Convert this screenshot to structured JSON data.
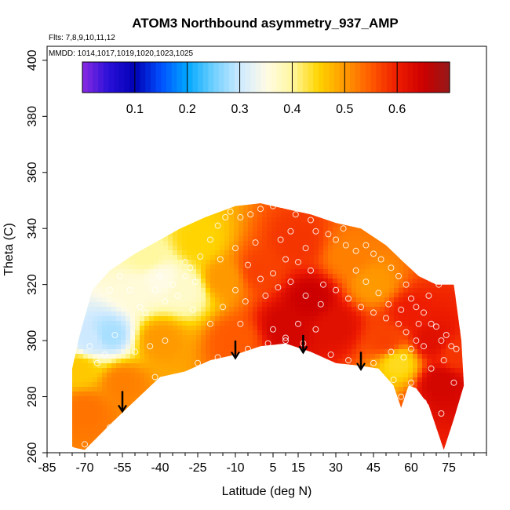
{
  "chart_data": {
    "type": "heatmap",
    "title": "ATOM3 Northbound asymmetry_937_AMP",
    "flights_note": "Flts: 7,8,9,10,11,12",
    "dates_note": "MMDD: 1014,1017,1019,1020,1023,1025",
    "xlabel": "Latitude (deg N)",
    "ylabel": "Theta (C)",
    "xlim": [
      -85,
      90
    ],
    "ylim": [
      260,
      405
    ],
    "x_ticks": [
      -85,
      -70,
      -55,
      -40,
      -25,
      -10,
      5,
      15,
      30,
      45,
      60,
      75
    ],
    "y_ticks": [
      260,
      280,
      300,
      320,
      340,
      360,
      380,
      400
    ],
    "colorbar": {
      "min": 0.0,
      "max": 0.7,
      "ticks": [
        0.1,
        0.2,
        0.3,
        0.4,
        0.5,
        0.6
      ],
      "stops": [
        {
          "v": 0.0,
          "c": "#8a2be2"
        },
        {
          "v": 0.05,
          "c": "#2a10d8"
        },
        {
          "v": 0.1,
          "c": "#0000b4"
        },
        {
          "v": 0.15,
          "c": "#0050ff"
        },
        {
          "v": 0.2,
          "c": "#00a8ff"
        },
        {
          "v": 0.25,
          "c": "#70d0ff"
        },
        {
          "v": 0.3,
          "c": "#cde9ff"
        },
        {
          "v": 0.35,
          "c": "#fffbe6"
        },
        {
          "v": 0.4,
          "c": "#fff8a0"
        },
        {
          "v": 0.45,
          "c": "#ffd400"
        },
        {
          "v": 0.5,
          "c": "#ff9900"
        },
        {
          "v": 0.55,
          "c": "#ff5a00"
        },
        {
          "v": 0.6,
          "c": "#ee1c00"
        },
        {
          "v": 0.65,
          "c": "#cc0000"
        },
        {
          "v": 0.7,
          "c": "#961818"
        }
      ]
    },
    "upper_boundary": [
      [
        -75,
        290
      ],
      [
        -72,
        302
      ],
      [
        -67,
        318
      ],
      [
        -60,
        325
      ],
      [
        -50,
        331
      ],
      [
        -42,
        335
      ],
      [
        -32,
        340
      ],
      [
        -22,
        344
      ],
      [
        -10,
        348
      ],
      [
        0,
        349
      ],
      [
        10,
        347
      ],
      [
        20,
        345
      ],
      [
        30,
        342
      ],
      [
        40,
        340
      ],
      [
        50,
        334
      ],
      [
        57,
        328
      ],
      [
        63,
        323
      ],
      [
        70,
        320
      ],
      [
        77,
        320
      ],
      [
        80,
        300
      ],
      [
        81,
        284
      ]
    ],
    "lower_boundary": [
      [
        -75,
        262
      ],
      [
        -70,
        261
      ],
      [
        -60,
        270
      ],
      [
        -53,
        276
      ],
      [
        -40,
        287
      ],
      [
        -30,
        289
      ],
      [
        -20,
        293
      ],
      [
        -10,
        295
      ],
      [
        0,
        298
      ],
      [
        10,
        299
      ],
      [
        20,
        296
      ],
      [
        30,
        292
      ],
      [
        40,
        291
      ],
      [
        47,
        290
      ],
      [
        53,
        284
      ],
      [
        56,
        276
      ],
      [
        59,
        284
      ],
      [
        62,
        283
      ],
      [
        67,
        277
      ],
      [
        73,
        261
      ],
      [
        77,
        272
      ],
      [
        81,
        284
      ]
    ],
    "field_anchors": [
      {
        "lat": -60,
        "theta": 302,
        "v": 0.28
      },
      {
        "lat": -68,
        "theta": 300,
        "v": 0.3
      },
      {
        "lat": -50,
        "theta": 318,
        "v": 0.36
      },
      {
        "lat": -40,
        "theta": 322,
        "v": 0.35
      },
      {
        "lat": -30,
        "theta": 318,
        "v": 0.37
      },
      {
        "lat": -45,
        "theta": 330,
        "v": 0.4
      },
      {
        "lat": -72,
        "theta": 290,
        "v": 0.46
      },
      {
        "lat": -70,
        "theta": 275,
        "v": 0.53
      },
      {
        "lat": -55,
        "theta": 285,
        "v": 0.52
      },
      {
        "lat": -40,
        "theta": 300,
        "v": 0.5
      },
      {
        "lat": -25,
        "theta": 335,
        "v": 0.45
      },
      {
        "lat": -15,
        "theta": 322,
        "v": 0.5
      },
      {
        "lat": -10,
        "theta": 300,
        "v": 0.55
      },
      {
        "lat": 0,
        "theta": 325,
        "v": 0.57
      },
      {
        "lat": 10,
        "theta": 305,
        "v": 0.64
      },
      {
        "lat": 20,
        "theta": 315,
        "v": 0.65
      },
      {
        "lat": 15,
        "theta": 335,
        "v": 0.58
      },
      {
        "lat": 30,
        "theta": 305,
        "v": 0.62
      },
      {
        "lat": 35,
        "theta": 330,
        "v": 0.52
      },
      {
        "lat": 45,
        "theta": 320,
        "v": 0.5
      },
      {
        "lat": 50,
        "theta": 300,
        "v": 0.57
      },
      {
        "lat": 60,
        "theta": 310,
        "v": 0.6
      },
      {
        "lat": 55,
        "theta": 292,
        "v": 0.44
      },
      {
        "lat": 68,
        "theta": 300,
        "v": 0.62
      },
      {
        "lat": 72,
        "theta": 285,
        "v": 0.64
      },
      {
        "lat": 78,
        "theta": 295,
        "v": 0.58
      }
    ],
    "arrows": [
      {
        "lat": -55,
        "theta_top": 282,
        "theta_bottom": 275
      },
      {
        "lat": -10,
        "theta_top": 300,
        "theta_bottom": 294
      },
      {
        "lat": 17,
        "theta_top": 302,
        "theta_bottom": 296
      },
      {
        "lat": 40,
        "theta_top": 296,
        "theta_bottom": 290
      }
    ],
    "sample_points": [
      [
        -75,
        261
      ],
      [
        -70,
        263
      ],
      [
        -60,
        269
      ],
      [
        -42,
        287
      ],
      [
        -34,
        287
      ],
      [
        -25,
        292
      ],
      [
        -17,
        294
      ],
      [
        -5,
        297
      ],
      [
        3,
        299
      ],
      [
        10,
        301
      ],
      [
        10,
        300
      ],
      [
        17,
        299
      ],
      [
        28,
        295
      ],
      [
        35,
        293
      ],
      [
        45,
        292
      ],
      [
        49,
        286
      ],
      [
        53,
        286
      ],
      [
        56,
        280
      ],
      [
        60,
        285
      ],
      [
        63,
        279
      ],
      [
        65,
        278
      ],
      [
        72,
        274
      ],
      [
        77,
        285
      ],
      [
        -58,
        302
      ],
      [
        -48,
        312
      ],
      [
        -42,
        318
      ],
      [
        -35,
        320
      ],
      [
        -30,
        323
      ],
      [
        -28,
        326
      ],
      [
        -24,
        330
      ],
      [
        -20,
        336
      ],
      [
        -17,
        341
      ],
      [
        -14,
        344
      ],
      [
        -12,
        346
      ],
      [
        -8,
        344
      ],
      [
        -4,
        345
      ],
      [
        0,
        347
      ],
      [
        5,
        348
      ],
      [
        8,
        336
      ],
      [
        12,
        339
      ],
      [
        14,
        345
      ],
      [
        20,
        343
      ],
      [
        22,
        339
      ],
      [
        27,
        338
      ],
      [
        30,
        336
      ],
      [
        34,
        334
      ],
      [
        38,
        332
      ],
      [
        42,
        334
      ],
      [
        45,
        331
      ],
      [
        48,
        329
      ],
      [
        52,
        326
      ],
      [
        55,
        323
      ],
      [
        58,
        320
      ],
      [
        60,
        315
      ],
      [
        62,
        312
      ],
      [
        65,
        310
      ],
      [
        68,
        306
      ],
      [
        70,
        305
      ],
      [
        72,
        300
      ],
      [
        74,
        302
      ],
      [
        76,
        298
      ],
      [
        -5,
        327
      ],
      [
        0,
        322
      ],
      [
        5,
        324
      ],
      [
        10,
        329
      ],
      [
        15,
        328
      ],
      [
        20,
        325
      ],
      [
        25,
        320
      ],
      [
        30,
        318
      ],
      [
        35,
        315
      ],
      [
        40,
        312
      ],
      [
        45,
        310
      ],
      [
        50,
        308
      ],
      [
        55,
        306
      ],
      [
        58,
        303
      ],
      [
        62,
        300
      ],
      [
        65,
        298
      ],
      [
        -52,
        318
      ],
      [
        -46,
        310
      ],
      [
        -38,
        314
      ],
      [
        -33,
        316
      ],
      [
        -27,
        311
      ],
      [
        -20,
        306
      ],
      [
        -15,
        312
      ],
      [
        -10,
        318
      ],
      [
        -6,
        314
      ],
      [
        2,
        316
      ],
      [
        7,
        319
      ],
      [
        12,
        321
      ],
      [
        18,
        316
      ],
      [
        24,
        313
      ],
      [
        -65,
        292
      ],
      [
        -62,
        295
      ],
      [
        -68,
        298
      ],
      [
        -50,
        296
      ],
      [
        -44,
        298
      ],
      [
        -38,
        300
      ],
      [
        52,
        296
      ],
      [
        57,
        294
      ],
      [
        60,
        297
      ],
      [
        68,
        290
      ],
      [
        73,
        293
      ],
      [
        78,
        297
      ],
      [
        -2,
        335
      ],
      [
        -10,
        333
      ],
      [
        -16,
        329
      ],
      [
        38,
        325
      ],
      [
        42,
        321
      ],
      [
        47,
        317
      ],
      [
        51,
        313
      ],
      [
        56,
        311
      ],
      [
        63,
        306
      ],
      [
        67,
        316
      ],
      [
        71,
        320
      ],
      [
        5,
        304
      ],
      [
        15,
        306
      ],
      [
        22,
        304
      ],
      [
        -30,
        328
      ],
      [
        -26,
        321
      ],
      [
        -40,
        323
      ],
      [
        -56,
        323
      ],
      [
        -60,
        318
      ],
      [
        33,
        340
      ],
      [
        18,
        333
      ],
      [
        -8,
        306
      ]
    ]
  }
}
